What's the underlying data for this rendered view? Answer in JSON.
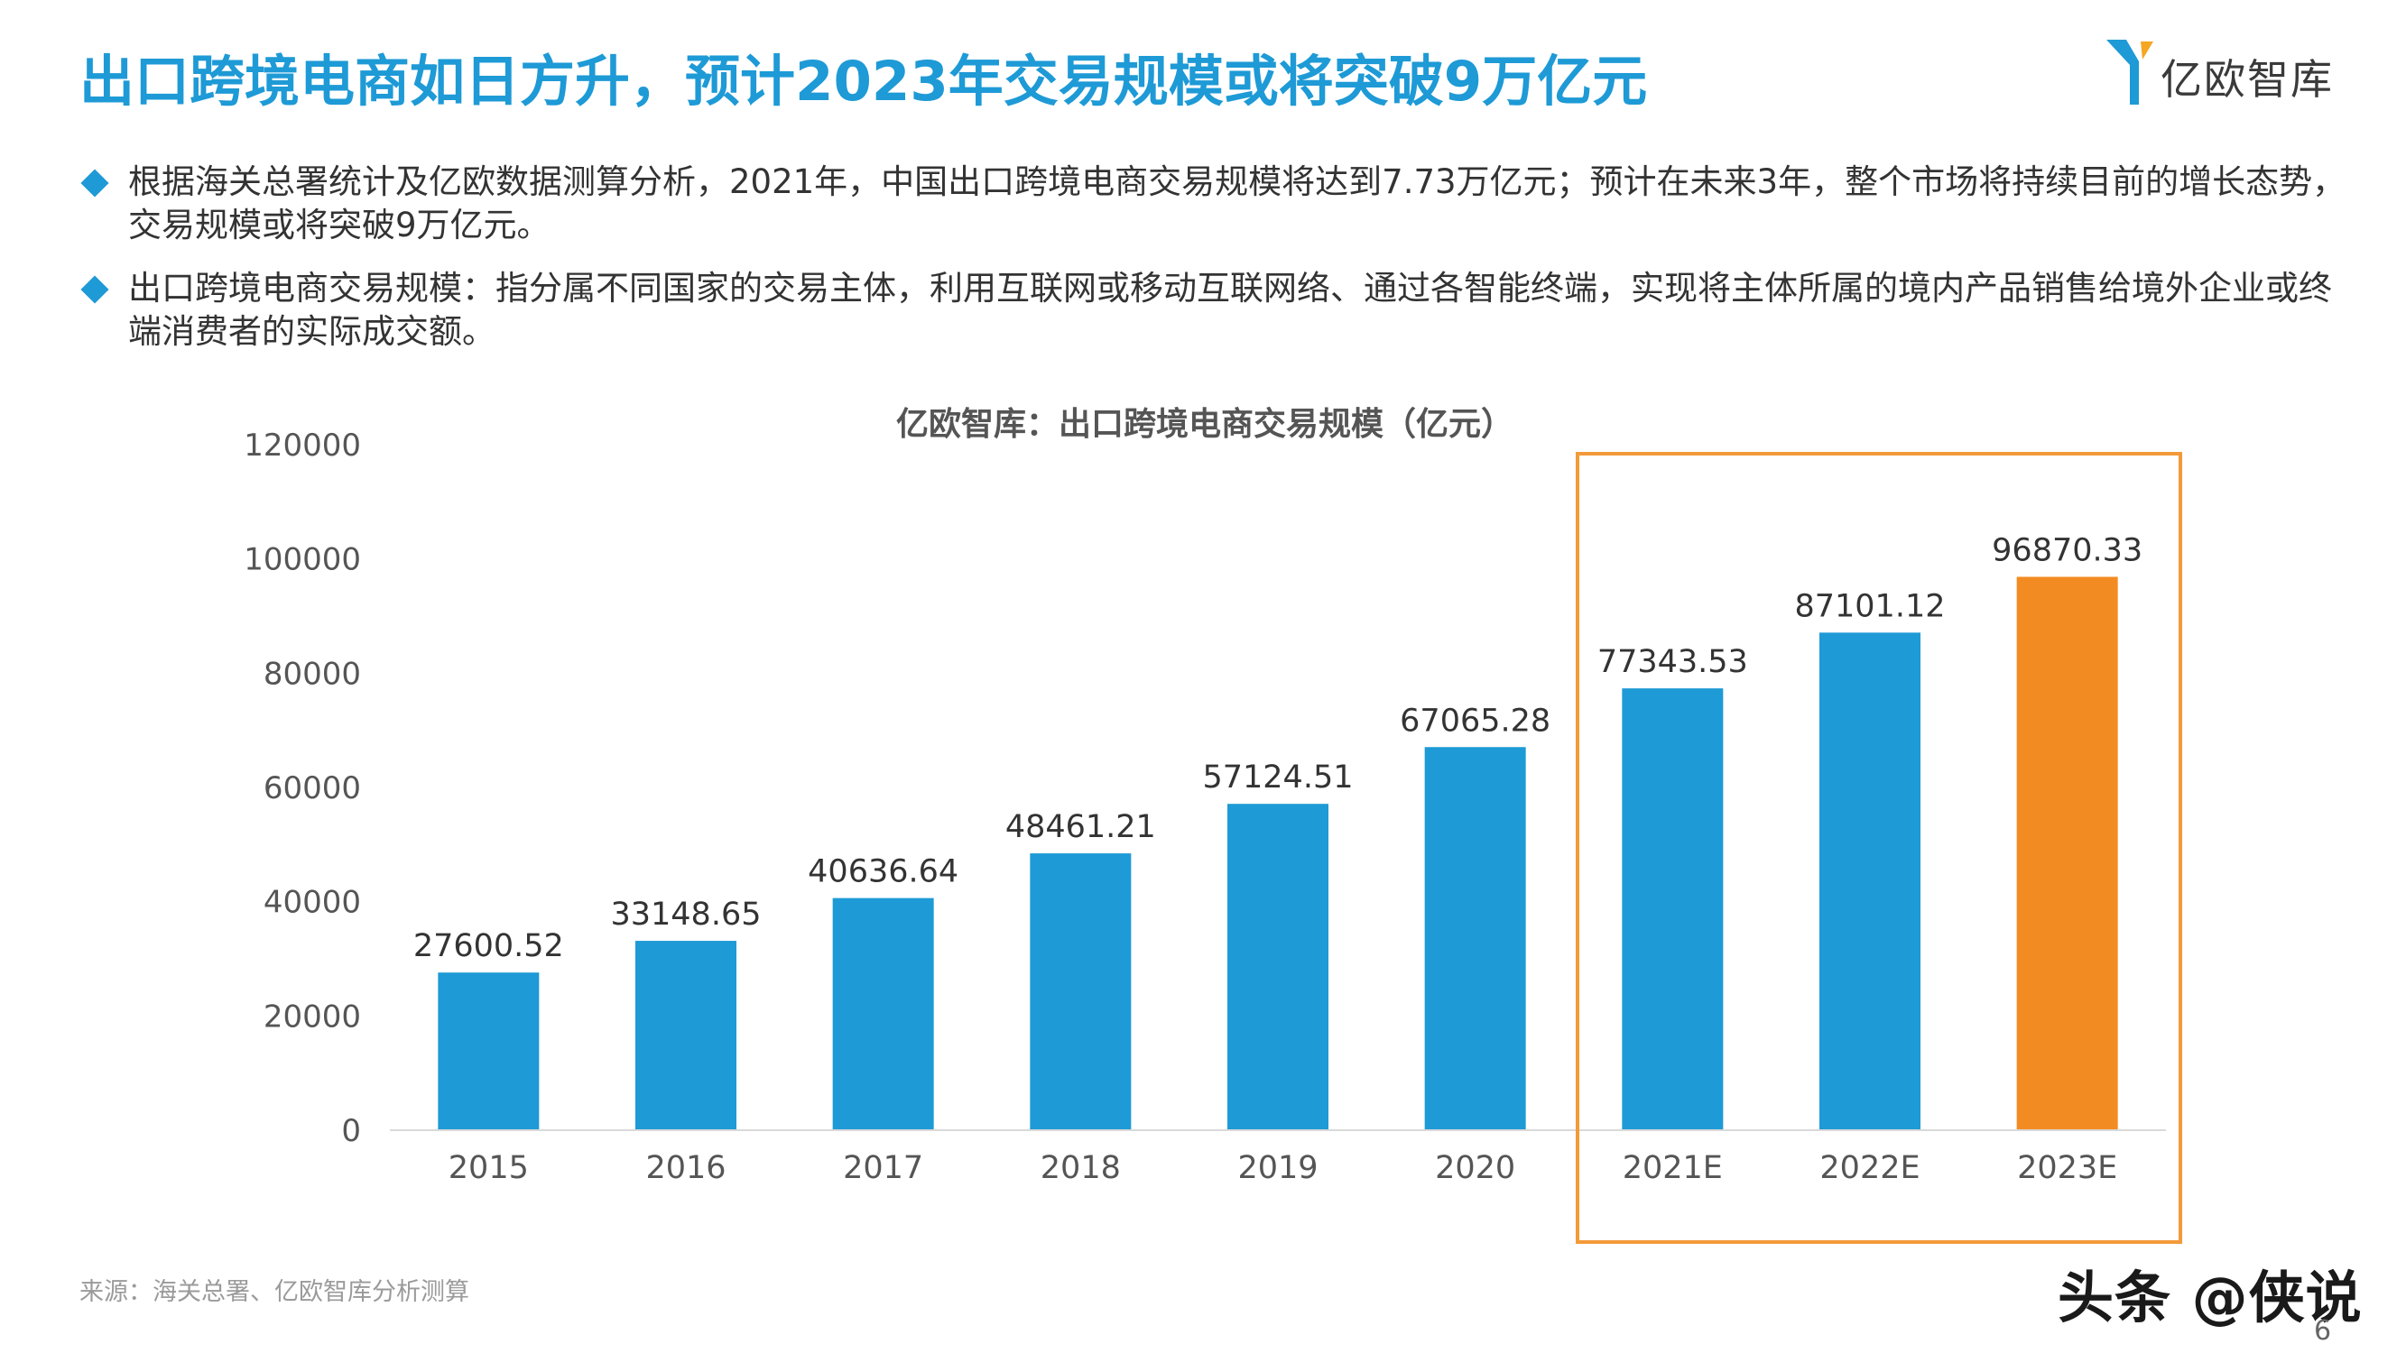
{
  "header": {
    "title": "出口跨境电商如日方升，预计2023年交易规模或将突破9万亿元",
    "logo_text": "亿欧智库"
  },
  "bullets": [
    "根据海关总署统计及亿欧数据测算分析，2021年，中国出口跨境电商交易规模将达到7.73万亿元；预计在未来3年，整个市场将持续目前的增长态势，交易规模或将突破9万亿元。",
    "出口跨境电商交易规模：指分属不同国家的交易主体，利用互联网或移动互联网络、通过各智能终端，实现将主体所属的境内产品销售给境外企业或终端消费者的实际成交额。"
  ],
  "chart_data": {
    "type": "bar",
    "title": "亿欧智库：出口跨境电商交易规模（亿元）",
    "categories": [
      "2015",
      "2016",
      "2017",
      "2018",
      "2019",
      "2020",
      "2021E",
      "2022E",
      "2023E"
    ],
    "values": [
      27600.52,
      33148.65,
      40636.64,
      48461.21,
      57124.51,
      67065.28,
      77343.53,
      87101.12,
      96870.33
    ],
    "data_labels": [
      "27600.52",
      "33148.65",
      "40636.64",
      "48461.21",
      "57124.51",
      "67065.28",
      "77343.53",
      "87101.12",
      "96870.33"
    ],
    "y_ticks": [
      "0",
      "20000",
      "40000",
      "60000",
      "80000",
      "100000",
      "120000"
    ],
    "ylim": [
      0,
      120000
    ],
    "grid": false,
    "bar_color": "#1e9ad6",
    "highlight_color": "#f38b23",
    "highlight_index": 8,
    "forecast_box_color": "#f39a3a",
    "forecast_box_categories": [
      "2021E",
      "2022E",
      "2023E"
    ]
  },
  "footer": {
    "source": "来源：海关总署、亿欧智库分析测算",
    "watermark": "头条 @侠说",
    "page_number": "6"
  }
}
